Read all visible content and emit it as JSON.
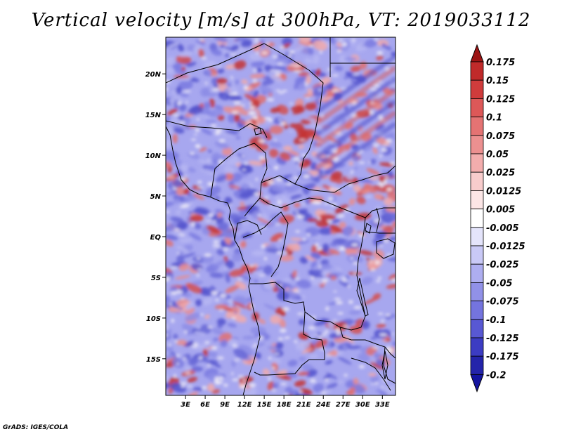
{
  "title": "Vertical velocity [m/s] at 300hPa, VT: 2019033112",
  "credit": "GrADS: IGES/COLA",
  "map": {
    "lat_range": [
      -19.5,
      24.5
    ],
    "lon_range": [
      0,
      35
    ],
    "lat_ticks": [
      {
        "value": 20,
        "label": "20N"
      },
      {
        "value": 15,
        "label": "15N"
      },
      {
        "value": 10,
        "label": "10N"
      },
      {
        "value": 5,
        "label": "5N"
      },
      {
        "value": 0,
        "label": "EQ"
      },
      {
        "value": -5,
        "label": "5S"
      },
      {
        "value": -10,
        "label": "10S"
      },
      {
        "value": -15,
        "label": "15S"
      }
    ],
    "lon_ticks": [
      {
        "value": 3,
        "label": "3E"
      },
      {
        "value": 6,
        "label": "6E"
      },
      {
        "value": 9,
        "label": "9E"
      },
      {
        "value": 12,
        "label": "12E"
      },
      {
        "value": 15,
        "label": "15E"
      },
      {
        "value": 18,
        "label": "18E"
      },
      {
        "value": 21,
        "label": "21E"
      },
      {
        "value": 24,
        "label": "24E"
      },
      {
        "value": 27,
        "label": "27E"
      },
      {
        "value": 30,
        "label": "30E"
      },
      {
        "value": 33,
        "label": "33E"
      }
    ]
  },
  "colorbar": {
    "levels": [
      {
        "label": "0.175",
        "color": "#b01c1c"
      },
      {
        "label": "0.15",
        "color": "#c02a2a"
      },
      {
        "label": "0.125",
        "color": "#d03c3c"
      },
      {
        "label": "0.1",
        "color": "#dd5858"
      },
      {
        "label": "0.075",
        "color": "#e47373"
      },
      {
        "label": "0.05",
        "color": "#ec9090"
      },
      {
        "label": "0.025",
        "color": "#f3adad"
      },
      {
        "label": "0.0125",
        "color": "#f8cccc"
      },
      {
        "label": "0.005",
        "color": "#fce6e6"
      },
      {
        "label": "-0.005",
        "color": "#ffffff"
      },
      {
        "label": "-0.0125",
        "color": "#e4e4fb"
      },
      {
        "label": "-0.025",
        "color": "#c9c9f6"
      },
      {
        "label": "-0.05",
        "color": "#aeaef0"
      },
      {
        "label": "-0.075",
        "color": "#9191e8"
      },
      {
        "label": "-0.1",
        "color": "#7474de"
      },
      {
        "label": "-0.125",
        "color": "#5858d3"
      },
      {
        "label": "-0.175",
        "color": "#3c3cc3"
      },
      {
        "label": "-0.2",
        "color": "#2424aa"
      }
    ],
    "top_arrow_color": "#9c1414",
    "bottom_arrow_color": "#1414a0"
  }
}
